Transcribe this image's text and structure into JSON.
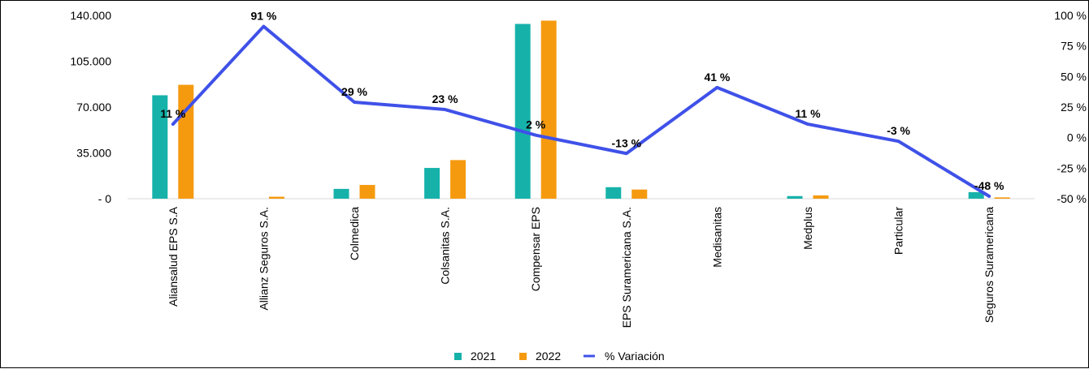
{
  "chart_data": {
    "type": "bar",
    "title": "",
    "xlabel": "",
    "ylabel": "",
    "categories": [
      "Aliansalud EPS S.A",
      "Allianz Seguros S.A.",
      "Colmedica",
      "Colsanitas S.A.",
      "Compensar EPS",
      "EPS Suramericana S.A.",
      "Medisanitas",
      "Medplus",
      "Particular",
      "Seguros Suramericana"
    ],
    "series": [
      {
        "name": "2021",
        "type": "bar",
        "axis": "left",
        "color": "#16B2AA",
        "values": [
          79000,
          0,
          7500,
          23500,
          133500,
          8800,
          0,
          2000,
          0,
          5000
        ]
      },
      {
        "name": "2022",
        "type": "bar",
        "axis": "left",
        "color": "#F59A0F",
        "values": [
          87000,
          1500,
          10500,
          29500,
          136000,
          7000,
          0,
          2500,
          0,
          1000
        ]
      },
      {
        "name": "% Variación",
        "type": "line",
        "axis": "right",
        "color": "#3F51E8",
        "values": [
          11,
          91,
          29,
          23,
          2,
          -13,
          41,
          11,
          -3,
          -48
        ]
      }
    ],
    "data_labels": [
      "11 %",
      "91 %",
      "29 %",
      "23 %",
      "2 %",
      "-13 %",
      "41 %",
      "11 %",
      "-3 %",
      "-48 %"
    ],
    "y_left": {
      "min": 0,
      "max": 140000,
      "ticks": [
        0,
        35000,
        70000,
        105000,
        140000
      ],
      "tick_labels": [
        "- 0",
        "35.000",
        "70.000",
        "105.000",
        "140.000"
      ]
    },
    "y_right": {
      "min": -50,
      "max": 100,
      "ticks": [
        -50,
        -25,
        0,
        25,
        50,
        75,
        100
      ],
      "tick_labels": [
        "-50 %",
        "-25 %",
        "0 %",
        "25 %",
        "50 %",
        "75 %",
        "100 %"
      ]
    },
    "legend": {
      "position": "bottom",
      "items": [
        {
          "label": "2021",
          "color": "#16B2AA",
          "marker": "square"
        },
        {
          "label": "2022",
          "color": "#F59A0F",
          "marker": "square"
        },
        {
          "label": "% Variación",
          "color": "#3F51E8",
          "marker": "line"
        }
      ]
    },
    "grid": false
  }
}
